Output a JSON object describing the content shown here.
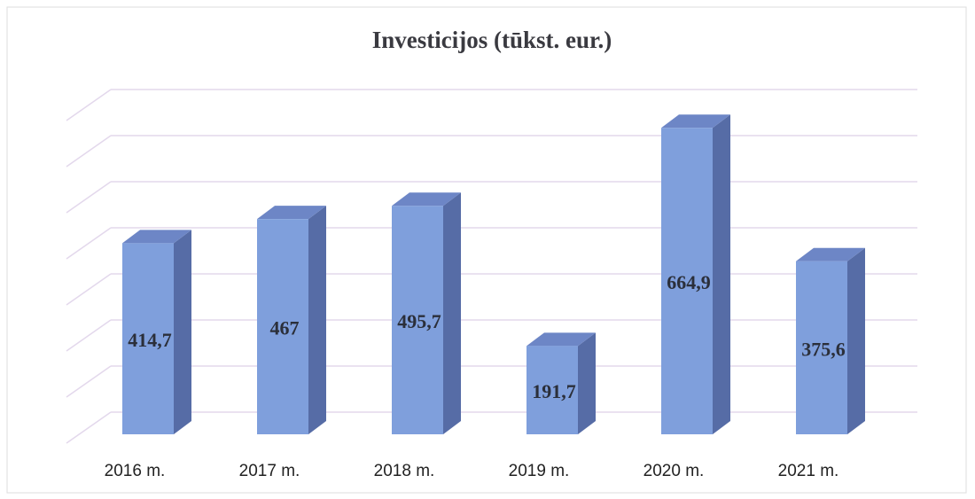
{
  "chart_data": {
    "type": "bar3d",
    "title": "Investicijos (tūkst. eur.)",
    "categories": [
      "2016 m.",
      "2017 m.",
      "2018 m.",
      "2019 m.",
      "2020 m.",
      "2021 m."
    ],
    "values": [
      414.7,
      467,
      495.7,
      191.7,
      664.9,
      375.6
    ],
    "value_labels": [
      "414,7",
      "467",
      "495,7",
      "191,7",
      "664,9",
      "375,6"
    ],
    "color": "#7f9fdc",
    "ylim": [
      0,
      700
    ],
    "yticks": [
      0,
      100,
      200,
      300,
      400,
      500,
      600,
      700
    ],
    "grid": true
  }
}
